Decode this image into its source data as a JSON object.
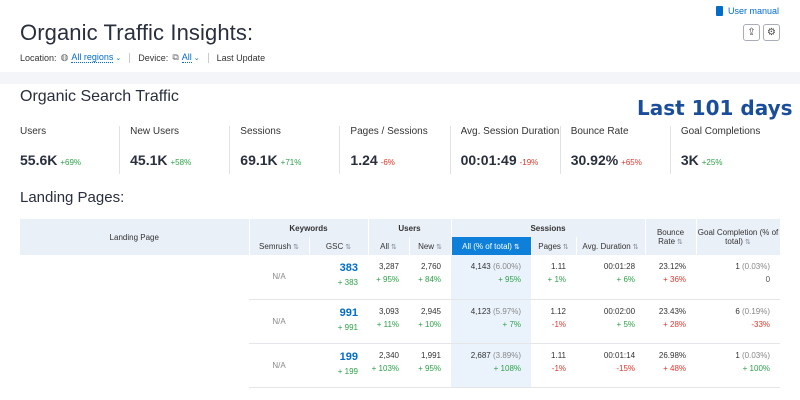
{
  "header": {
    "title": "Organic Traffic Insights:",
    "user_manual": "User manual",
    "filters": {
      "location_label": "Location:",
      "location_value": "All regions",
      "device_label": "Device:",
      "device_value": "All",
      "last_update": "Last Update"
    }
  },
  "organic": {
    "title": "Organic Search Traffic",
    "overlay": "Last 101 days",
    "metrics": [
      {
        "label": "Users",
        "value": "55.6K",
        "change": "+69%",
        "trend": "pos"
      },
      {
        "label": "New Users",
        "value": "45.1K",
        "change": "+58%",
        "trend": "pos"
      },
      {
        "label": "Sessions",
        "value": "69.1K",
        "change": "+71%",
        "trend": "pos"
      },
      {
        "label": "Pages / Sessions",
        "value": "1.24",
        "change": "-6%",
        "trend": "neg"
      },
      {
        "label": "Avg. Session Duration",
        "value": "00:01:49",
        "change": "-19%",
        "trend": "neg"
      },
      {
        "label": "Bounce Rate",
        "value": "30.92%",
        "change": "+65%",
        "trend": "neg"
      },
      {
        "label": "Goal Completions",
        "value": "3K",
        "change": "+25%",
        "trend": "pos"
      }
    ]
  },
  "landing": {
    "title": "Landing Pages:",
    "headers": {
      "landing_page": "Landing Page",
      "keywords": "Keywords",
      "users": "Users",
      "sessions": "Sessions",
      "bounce_rate": "Bounce Rate",
      "goal_completion": "Goal Completion (% of total)",
      "semrush": "Semrush",
      "gsc": "GSC",
      "users_all": "All",
      "users_new": "New",
      "sessions_all": "All (% of total)",
      "pages": "Pages",
      "avg_duration": "Avg. Duration"
    },
    "rows": [
      {
        "semrush": "N/A",
        "gsc": "383",
        "gsc_chg": "+ 383",
        "users_all": "3,287",
        "users_all_chg": "+ 95%",
        "users_new": "2,760",
        "users_new_chg": "+ 84%",
        "sessions": "4,143",
        "sessions_pct": "(6.00%)",
        "sessions_chg": "+ 95%",
        "pages": "1.11",
        "pages_chg": "+ 1%",
        "duration": "00:01:28",
        "duration_chg": "+ 6%",
        "bounce": "23.12%",
        "bounce_chg": "+ 36%",
        "goal": "1",
        "goal_pct": "(0.03%)",
        "goal_chg": "0"
      },
      {
        "semrush": "N/A",
        "gsc": "991",
        "gsc_chg": "+ 991",
        "users_all": "3,093",
        "users_all_chg": "+ 11%",
        "users_new": "2,945",
        "users_new_chg": "+ 10%",
        "sessions": "4,123",
        "sessions_pct": "(5.97%)",
        "sessions_chg": "+ 7%",
        "pages": "1.12",
        "pages_chg": "-1%",
        "duration": "00:02:00",
        "duration_chg": "+ 5%",
        "bounce": "23.43%",
        "bounce_chg": "+ 28%",
        "goal": "6",
        "goal_pct": "(0.19%)",
        "goal_chg": "-33%"
      },
      {
        "semrush": "N/A",
        "gsc": "199",
        "gsc_chg": "+ 199",
        "users_all": "2,340",
        "users_all_chg": "+ 103%",
        "users_new": "1,991",
        "users_new_chg": "+ 95%",
        "sessions": "2,687",
        "sessions_pct": "(3.89%)",
        "sessions_chg": "+ 108%",
        "pages": "1.11",
        "pages_chg": "-1%",
        "duration": "00:01:14",
        "duration_chg": "-15%",
        "bounce": "26.98%",
        "bounce_chg": "+ 48%",
        "goal": "1",
        "goal_pct": "(0.03%)",
        "goal_chg": "+ 100%"
      }
    ]
  },
  "colors": {
    "accent": "#0f80d9",
    "positive": "#2ea14a",
    "negative": "#e0362b",
    "link": "#006dca"
  }
}
